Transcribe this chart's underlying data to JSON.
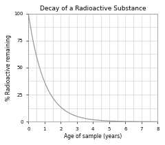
{
  "title": "Decay of a Radioactive Substance",
  "xlabel": "Age of sample (years)",
  "ylabel": "% Radioactive remaining",
  "xlim": [
    0,
    8
  ],
  "ylim": [
    0,
    100
  ],
  "x_ticks": [
    0,
    1,
    2,
    3,
    4,
    5,
    6,
    7,
    8
  ],
  "y_ticks": [
    0,
    25,
    50,
    75,
    100
  ],
  "decay_constant": 1.0,
  "x_start": 0,
  "x_end": 8,
  "line_color": "#999999",
  "line_width": 0.9,
  "grid_color": "#cccccc",
  "grid_linewidth": 0.4,
  "background_color": "#ffffff",
  "title_fontsize": 6.5,
  "label_fontsize": 5.5,
  "tick_fontsize": 5.0,
  "x_minor_step": 0.5,
  "y_minor_step": 12.5
}
